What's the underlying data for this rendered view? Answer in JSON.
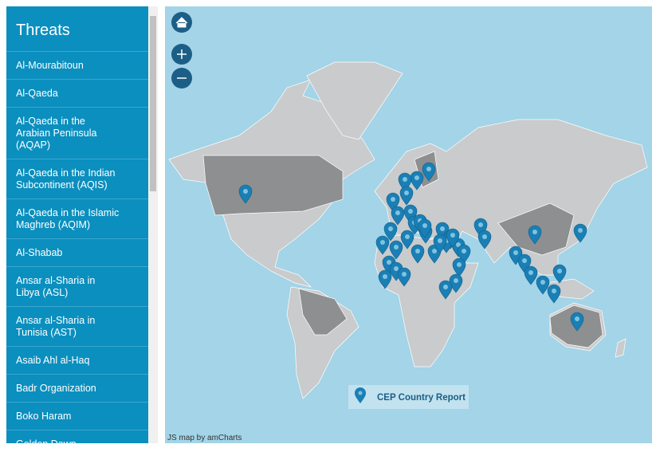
{
  "sidebar": {
    "title": "Threats",
    "items": [
      [
        "Al-Mourabitoun"
      ],
      [
        "Al-Qaeda"
      ],
      [
        "Al-Qaeda in the",
        "Arabian Peninsula",
        "(AQAP)"
      ],
      [
        "Al-Qaeda in the Indian",
        "Subcontinent (AQIS)"
      ],
      [
        "Al-Qaeda in the Islamic",
        "Maghreb (AQIM)"
      ],
      [
        "Al-Shabab"
      ],
      [
        "Ansar al-Sharia in",
        "Libya (ASL)"
      ],
      [
        "Ansar al-Sharia in",
        "Tunisia (AST)"
      ],
      [
        "Asaib Ahl al-Haq"
      ],
      [
        "Badr Organization"
      ],
      [
        "Boko Haram"
      ],
      [
        "Golden Dawn"
      ]
    ]
  },
  "map": {
    "legend": "CEP Country Report",
    "credit": "JS map by amCharts"
  }
}
